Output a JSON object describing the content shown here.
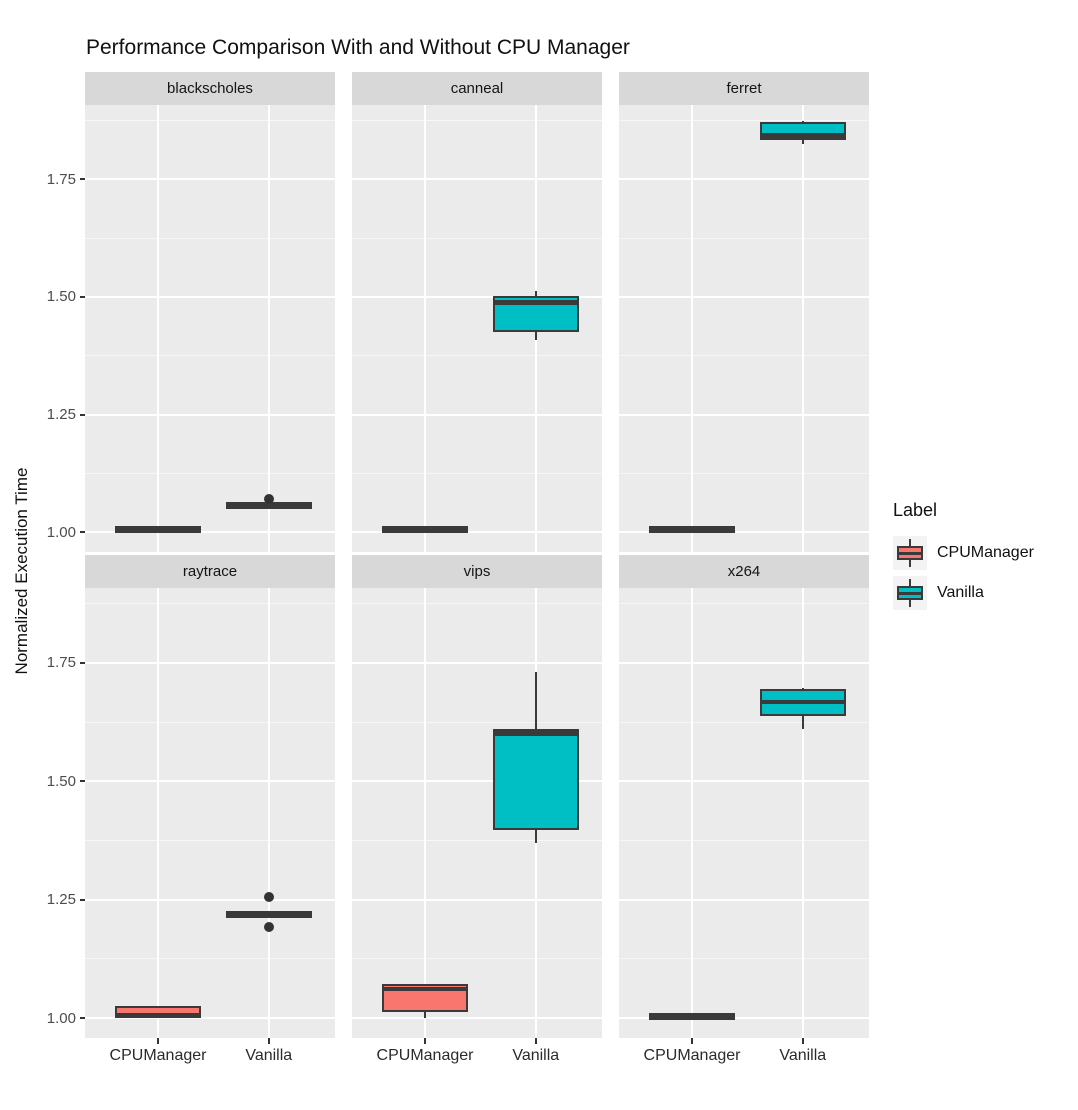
{
  "title": "Performance Comparison With and Without CPU Manager",
  "y_axis": {
    "label": "Normalized Execution Time",
    "ticks": [
      "1.00",
      "1.25",
      "1.50",
      "1.75"
    ],
    "tick_values": [
      1.0,
      1.25,
      1.5,
      1.75
    ]
  },
  "x_axis": {
    "categories": [
      "CPUManager",
      "Vanilla"
    ]
  },
  "legend": {
    "title": "Label",
    "entries": [
      {
        "label": "CPUManager",
        "color": "#F8766D"
      },
      {
        "label": "Vanilla",
        "color": "#00BFC4"
      }
    ]
  },
  "colors": {
    "panel_bg": "#EBEBEB",
    "strip_bg": "#D8D8D8",
    "grid": "#FFFFFF",
    "box_stroke": "#3A3A3A",
    "cpumanager_fill": "#F8766D",
    "vanilla_fill": "#00BFC4"
  },
  "chart_data": {
    "type": "boxplot",
    "facet_layout": {
      "rows": 2,
      "cols": 3
    },
    "ylim": [
      0.958,
      1.908
    ],
    "grid": {
      "major": [
        1.0,
        1.25,
        1.5,
        1.75
      ],
      "minor": [
        1.125,
        1.375,
        1.625,
        1.875
      ]
    },
    "legend_position": "right",
    "categories": [
      "CPUManager",
      "Vanilla"
    ],
    "facets": [
      {
        "label": "blackscholes",
        "boxes": [
          {
            "group": "CPUManager",
            "min": 1.0,
            "q1": 1.0,
            "median": 1.007,
            "q3": 1.013,
            "max": 1.013,
            "outliers": []
          },
          {
            "group": "Vanilla",
            "min": 1.052,
            "q1": 1.052,
            "median": 1.056,
            "q3": 1.061,
            "max": 1.061,
            "outliers": [
              1.071
            ]
          }
        ]
      },
      {
        "label": "canneal",
        "boxes": [
          {
            "group": "CPUManager",
            "min": 0.999,
            "q1": 1.0,
            "median": 1.006,
            "q3": 1.012,
            "max": 1.013,
            "outliers": []
          },
          {
            "group": "Vanilla",
            "min": 1.408,
            "q1": 1.425,
            "median": 1.488,
            "q3": 1.503,
            "max": 1.513,
            "outliers": []
          }
        ]
      },
      {
        "label": "ferret",
        "boxes": [
          {
            "group": "CPUManager",
            "min": 1.001,
            "q1": 1.001,
            "median": 1.005,
            "q3": 1.009,
            "max": 1.009,
            "outliers": []
          },
          {
            "group": "Vanilla",
            "min": 1.826,
            "q1": 1.833,
            "median": 1.843,
            "q3": 1.871,
            "max": 1.873,
            "outliers": []
          }
        ]
      },
      {
        "label": "raytrace",
        "boxes": [
          {
            "group": "CPUManager",
            "min": 1.0,
            "q1": 1.0,
            "median": 1.006,
            "q3": 1.025,
            "max": 1.025,
            "outliers": []
          },
          {
            "group": "Vanilla",
            "min": 1.215,
            "q1": 1.215,
            "median": 1.219,
            "q3": 1.222,
            "max": 1.222,
            "outliers": [
              1.256,
              1.192
            ]
          }
        ]
      },
      {
        "label": "vips",
        "boxes": [
          {
            "group": "CPUManager",
            "min": 1.0,
            "q1": 1.012,
            "median": 1.062,
            "q3": 1.071,
            "max": 1.071,
            "outliers": []
          },
          {
            "group": "Vanilla",
            "min": 1.37,
            "q1": 1.397,
            "median": 1.601,
            "q3": 1.61,
            "max": 1.731,
            "outliers": []
          }
        ]
      },
      {
        "label": "x264",
        "boxes": [
          {
            "group": "CPUManager",
            "min": 1.0,
            "q1": 1.0,
            "median": 1.004,
            "q3": 1.008,
            "max": 1.008,
            "outliers": []
          },
          {
            "group": "Vanilla",
            "min": 1.611,
            "q1": 1.638,
            "median": 1.667,
            "q3": 1.695,
            "max": 1.696,
            "outliers": []
          }
        ]
      }
    ]
  }
}
